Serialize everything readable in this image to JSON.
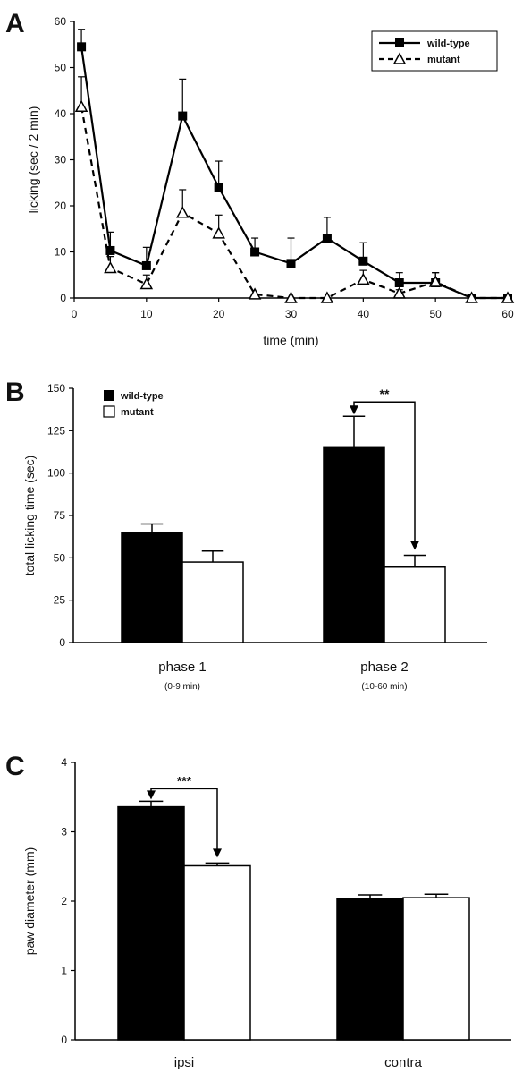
{
  "chart_data": [
    {
      "panel": "A",
      "type": "line",
      "xlabel": "time (min)",
      "ylabel": "licking (sec / 2 min)",
      "xlim": [
        0,
        60
      ],
      "ylim": [
        0,
        60
      ],
      "xticks": [
        0,
        10,
        20,
        30,
        40,
        50,
        60
      ],
      "yticks": [
        0,
        10,
        20,
        30,
        40,
        50,
        60
      ],
      "legend_position": "top-right",
      "grid": false,
      "series": [
        {
          "name": "wild-type",
          "style": "solid",
          "marker": "filled-square",
          "x": [
            1,
            5,
            10,
            15,
            20,
            25,
            30,
            35,
            40,
            45,
            50,
            55,
            60
          ],
          "values": [
            54.5,
            10.3,
            7,
            39.5,
            24,
            10,
            7.5,
            13,
            8,
            3.3,
            3.3,
            0,
            0
          ],
          "errors": [
            3.8,
            4,
            4,
            8,
            5.7,
            3,
            5.5,
            4.5,
            4,
            2.2,
            2.2,
            0,
            0
          ]
        },
        {
          "name": "mutant",
          "style": "dashed",
          "marker": "open-triangle",
          "x": [
            1,
            5,
            10,
            15,
            20,
            25,
            30,
            35,
            40,
            45,
            50,
            55,
            60
          ],
          "values": [
            41.5,
            6.5,
            3,
            18.5,
            14,
            0.8,
            0,
            0,
            4,
            1,
            3.5,
            0,
            0
          ],
          "errors": [
            6.5,
            2.5,
            2,
            5,
            4,
            0,
            0,
            0,
            2,
            0.8,
            2,
            0,
            0
          ]
        }
      ]
    },
    {
      "panel": "B",
      "type": "bar",
      "ylabel": "total licking time (sec)",
      "ylim": [
        0,
        150
      ],
      "yticks": [
        0,
        25,
        50,
        75,
        100,
        125,
        150
      ],
      "categories": [
        "phase 1",
        "phase 2"
      ],
      "category_sublabels": [
        "(0-9 min)",
        "(10-60 min)"
      ],
      "legend_position": "top-left",
      "series": [
        {
          "name": "wild-type",
          "fill": "black",
          "values": [
            65,
            115.5
          ],
          "errors": [
            5,
            18
          ]
        },
        {
          "name": "mutant",
          "fill": "white",
          "values": [
            47.5,
            44.5
          ],
          "errors": [
            6.5,
            7
          ]
        }
      ],
      "significance": [
        {
          "category": "phase 2",
          "label": "**"
        }
      ]
    },
    {
      "panel": "C",
      "type": "bar",
      "ylabel": "paw diameter (mm)",
      "ylim": [
        0,
        4
      ],
      "yticks": [
        0,
        1,
        2,
        3,
        4
      ],
      "categories": [
        "ipsi",
        "contra"
      ],
      "series": [
        {
          "fill": "black",
          "values": [
            3.36,
            2.03
          ],
          "errors": [
            0.08,
            0.06
          ]
        },
        {
          "fill": "white",
          "values": [
            2.51,
            2.05
          ],
          "errors": [
            0.04,
            0.05
          ]
        }
      ],
      "significance": [
        {
          "category": "ipsi",
          "label": "***"
        }
      ]
    }
  ]
}
